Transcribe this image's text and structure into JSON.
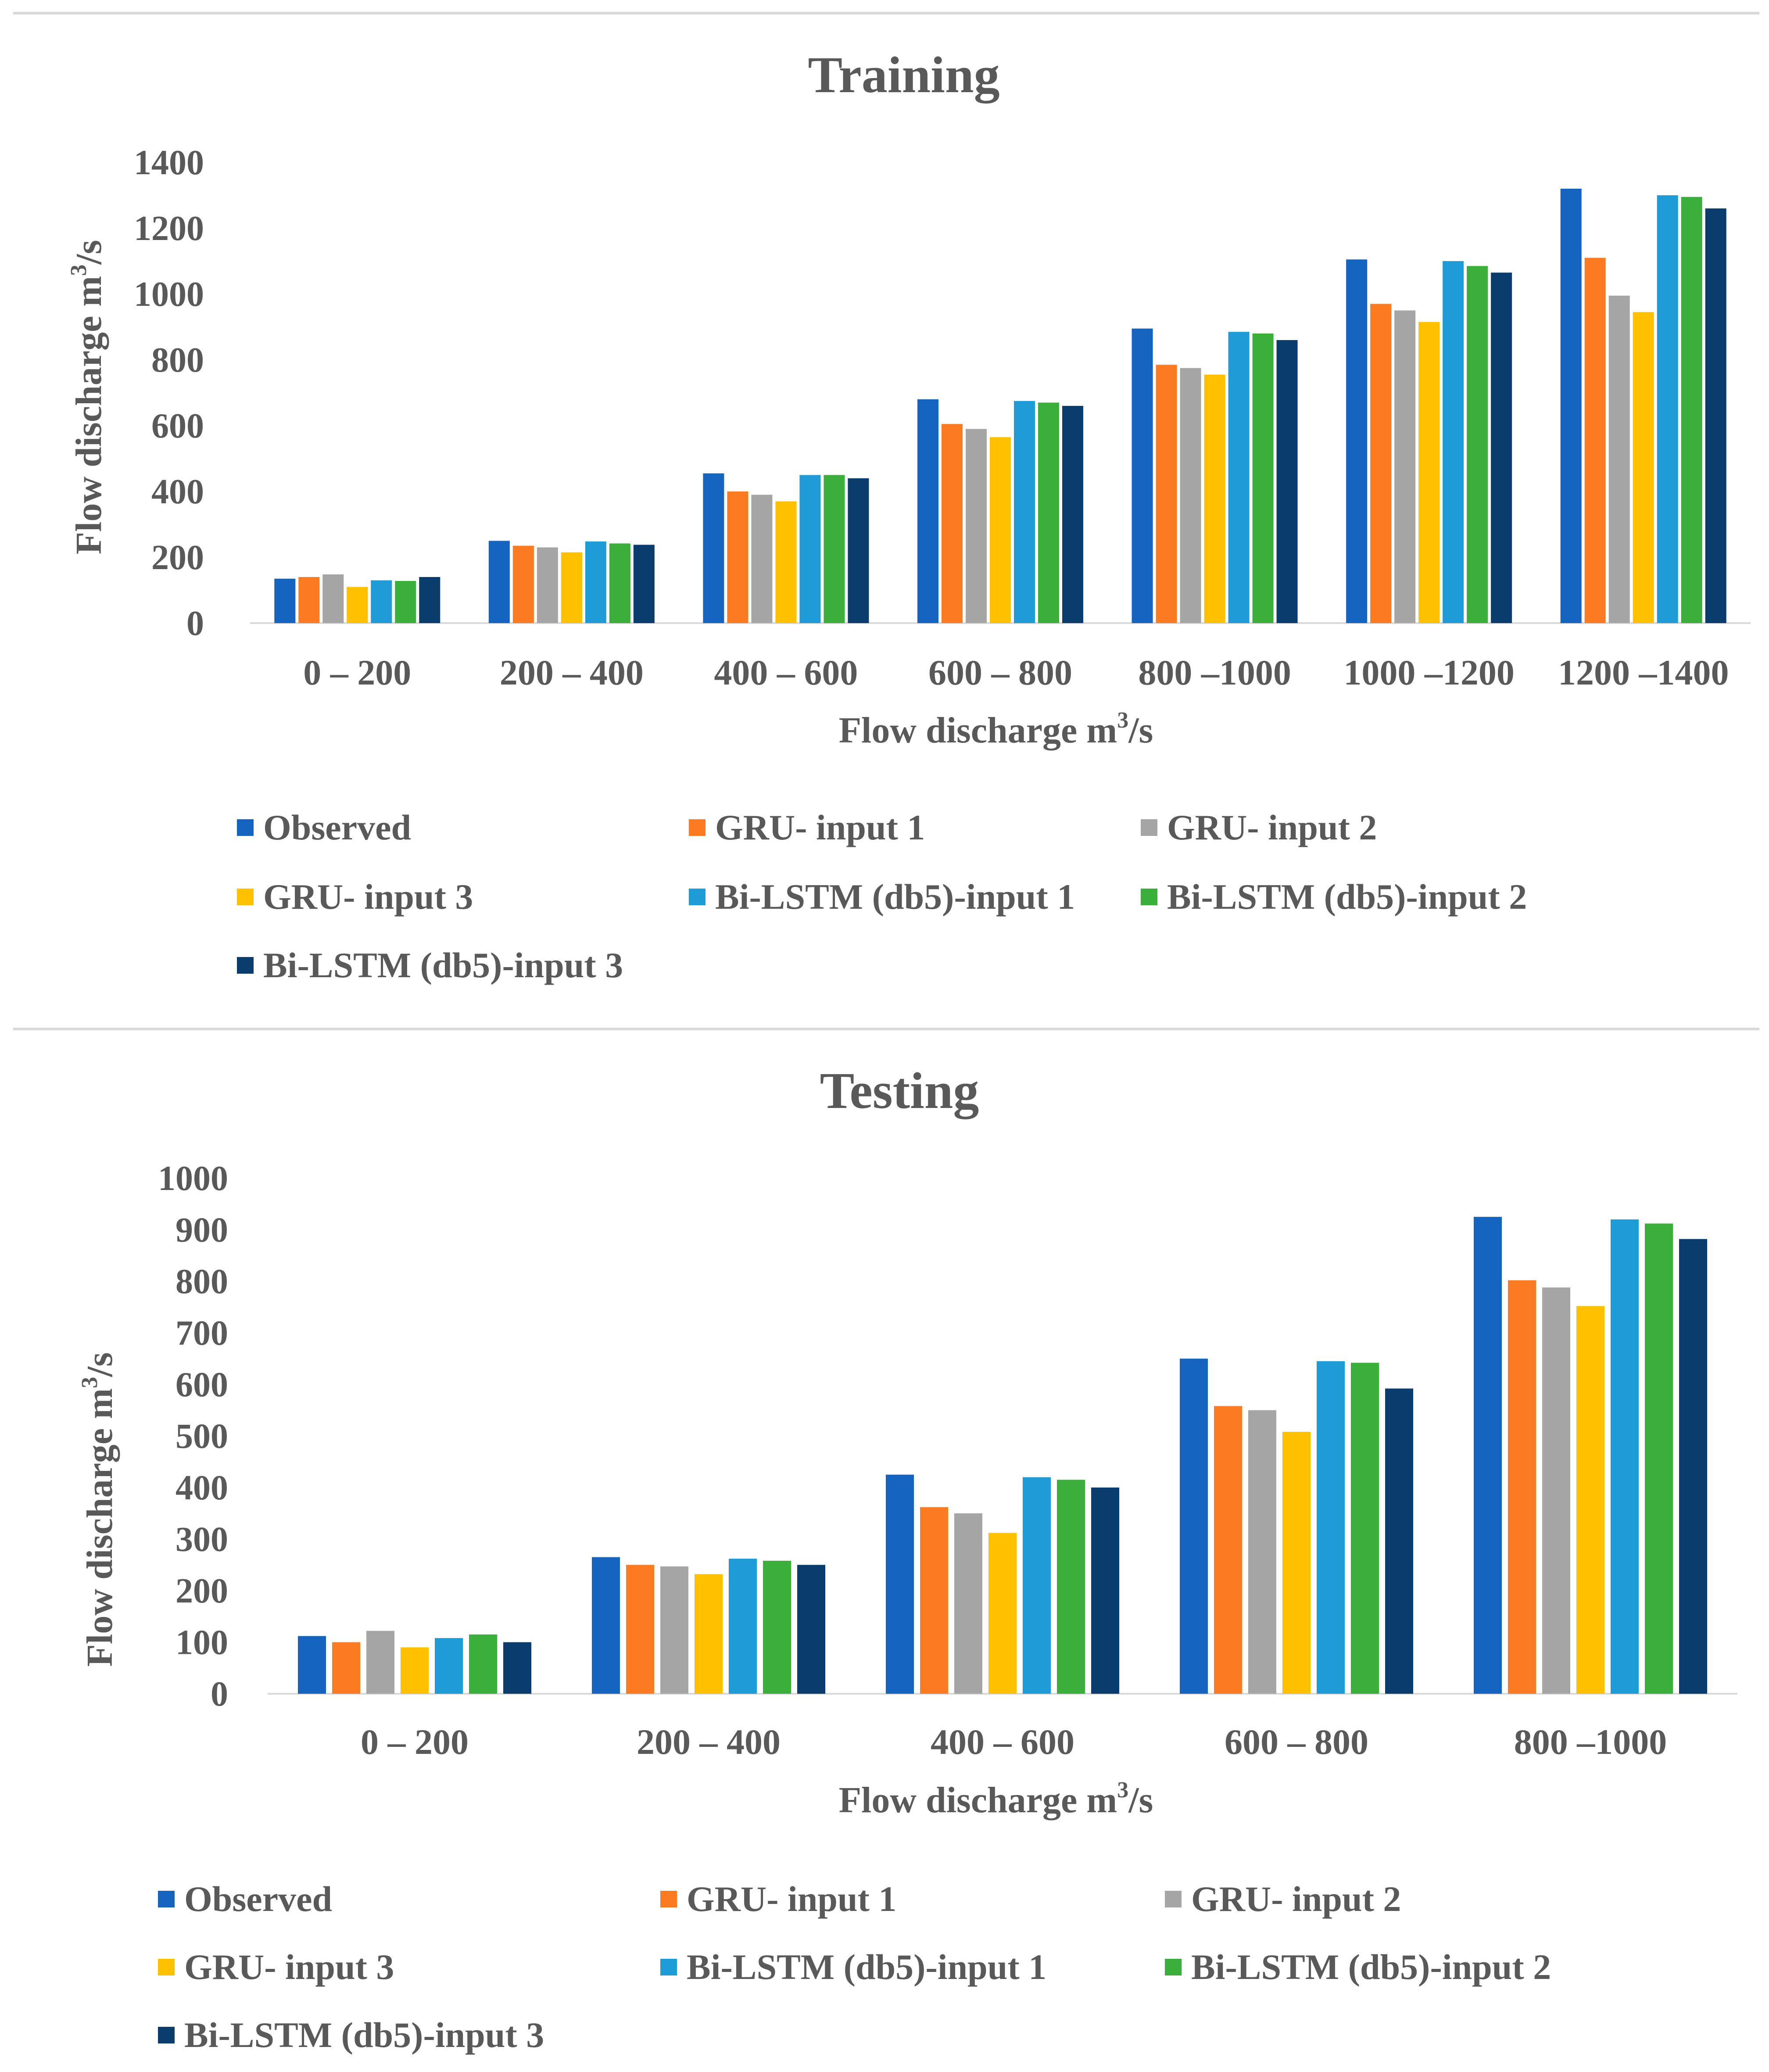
{
  "chart_data": [
    {
      "type": "bar",
      "title": "Training",
      "xlabel": "Flow discharge m",
      "xlabel_sup": "3",
      "xlabel_tail": "/s",
      "ylabel": "Flow discharge m",
      "ylabel_sup": "3",
      "ylabel_tail": "/s",
      "ylim": [
        0,
        1400
      ],
      "yticks": [
        "0",
        "200",
        "400",
        "600",
        "800",
        "1000",
        "1200",
        "1400"
      ],
      "categories": [
        "0 – 200",
        "200 – 400",
        "400 – 600",
        "600 – 800",
        "800 –1000",
        "1000 –1200",
        "1200 –1400"
      ],
      "series": [
        {
          "name": "Observed",
          "values": [
            135,
            250,
            455,
            680,
            895,
            1105,
            1320
          ]
        },
        {
          "name": "GRU- input 1",
          "values": [
            140,
            235,
            400,
            605,
            785,
            970,
            1110
          ]
        },
        {
          "name": "GRU- input 2",
          "values": [
            148,
            230,
            390,
            590,
            775,
            950,
            995
          ]
        },
        {
          "name": "GRU- input 3",
          "values": [
            110,
            215,
            370,
            565,
            755,
            915,
            945
          ]
        },
        {
          "name": "Bi-LSTM (db5)-input 1",
          "values": [
            130,
            248,
            450,
            675,
            885,
            1100,
            1300
          ]
        },
        {
          "name": "Bi-LSTM (db5)-input 2",
          "values": [
            128,
            242,
            450,
            670,
            880,
            1085,
            1295
          ]
        },
        {
          "name": "Bi-LSTM (db5)-input 3",
          "values": [
            140,
            238,
            440,
            660,
            860,
            1065,
            1260
          ]
        }
      ]
    },
    {
      "type": "bar",
      "title": "Testing",
      "xlabel": "Flow discharge m",
      "xlabel_sup": "3",
      "xlabel_tail": "/s",
      "ylabel": "Flow discharge m",
      "ylabel_sup": "3",
      "ylabel_tail": "/s",
      "ylim": [
        0,
        1000
      ],
      "yticks": [
        "0",
        "100",
        "200",
        "300",
        "400",
        "500",
        "600",
        "700",
        "800",
        "900",
        "1000"
      ],
      "categories": [
        "0 – 200",
        "200 – 400",
        "400 – 600",
        "600 – 800",
        "800 –1000"
      ],
      "series": [
        {
          "name": "Observed",
          "values": [
            112,
            265,
            425,
            650,
            925
          ]
        },
        {
          "name": "GRU- input 1",
          "values": [
            100,
            250,
            362,
            558,
            802
          ]
        },
        {
          "name": "GRU- input 2",
          "values": [
            122,
            247,
            350,
            550,
            788
          ]
        },
        {
          "name": "GRU- input 3",
          "values": [
            90,
            232,
            312,
            508,
            752
          ]
        },
        {
          "name": "Bi-LSTM (db5)-input 1",
          "values": [
            108,
            262,
            420,
            645,
            920
          ]
        },
        {
          "name": "Bi-LSTM (db5)-input 2",
          "values": [
            115,
            258,
            415,
            642,
            912
          ]
        },
        {
          "name": "Bi-LSTM (db5)-input 3",
          "values": [
            100,
            250,
            400,
            592,
            882
          ]
        }
      ]
    }
  ],
  "colors": [
    "#1565c0",
    "#fb7a22",
    "#a5a5a5",
    "#ffc000",
    "#1f9bd7",
    "#3cae3c",
    "#0a3d6e"
  ],
  "legend_labels": [
    "Observed",
    "GRU- input 1",
    "GRU- input 2",
    "GRU- input 3",
    "Bi-LSTM (db5)-input 1",
    "Bi-LSTM (db5)-input 2",
    "Bi-LSTM (db5)-input 3"
  ]
}
